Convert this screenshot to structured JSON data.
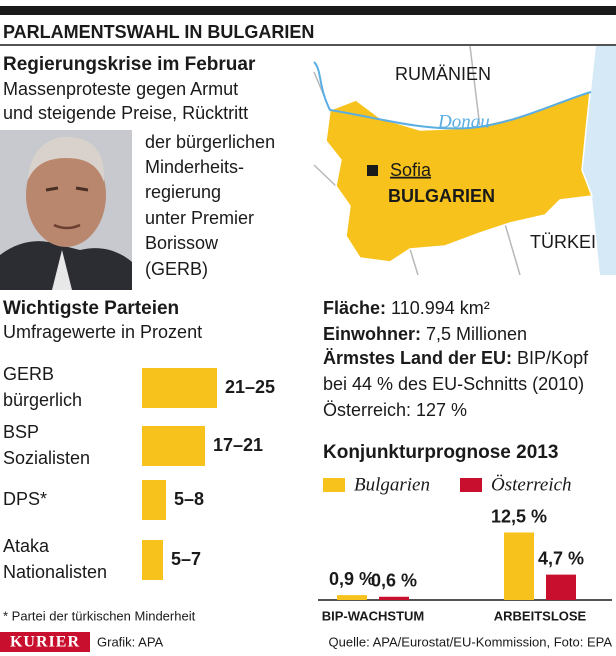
{
  "header": {
    "title": "PARLAMENTSWAHL IN BULGARIEN"
  },
  "intro": {
    "heading": "Regierungskrise im Februar",
    "lines": [
      "Massenproteste gegen Armut",
      "und steigende Preise, Rücktritt",
      "der bürgerlichen",
      "Minderheits-",
      "regierung",
      "unter Premier",
      "Borissow",
      "(GERB)"
    ]
  },
  "map": {
    "romania": "RUMÄNIEN",
    "river": "Donau",
    "capital": "Sofia",
    "country": "BULGARIEN",
    "turkey": "TÜRKEI"
  },
  "facts": {
    "rows": [
      {
        "label": "Fläche:",
        "text": "110.994 km²"
      },
      {
        "label": "Einwohner:",
        "text": "7,5 Millionen"
      },
      {
        "label": "Ärmstes Land der EU:",
        "text": "BIP/Kopf"
      }
    ],
    "lines": [
      "bei 44 % des EU-Schnitts (2010)",
      "Österreich: 127 %"
    ]
  },
  "chart_data": [
    {
      "type": "range_bar",
      "title": "Wichtigste Parteien",
      "subtitle": "Umfragewerte in Prozent",
      "categories": [
        "GERB",
        "BSP",
        "DPS*",
        "Ataka"
      ],
      "descriptions": [
        "bürgerlich",
        "Sozialisten",
        null,
        "Nationalisten"
      ],
      "values": [
        [
          21,
          25
        ],
        [
          17,
          21
        ],
        [
          5,
          8
        ],
        [
          5,
          7
        ]
      ],
      "value_labels": [
        "21–25",
        "17–21",
        "5–8",
        "5–7"
      ],
      "color": "#f7c21b",
      "footnote": "* Partei der türkischen Minderheit"
    },
    {
      "type": "bar",
      "title": "Konjunkturprognose 2013",
      "categories": [
        "BIP-WACHSTUM",
        "ARBEITSLOSE"
      ],
      "series": [
        {
          "name": "Bulgarien",
          "color": "#f7c21b",
          "values": [
            0.9,
            12.5
          ],
          "value_labels": [
            "0,9 %",
            "12,5 %"
          ]
        },
        {
          "name": "Österreich",
          "color": "#c8102e",
          "values": [
            0.6,
            4.7
          ],
          "value_labels": [
            "0,6 %",
            "4,7 %"
          ]
        }
      ]
    }
  ],
  "footer": {
    "brand": "KURIER",
    "credit": "Grafik: APA",
    "source": "Quelle: APA/Eurostat/EU-Kommission, Foto: EPA"
  }
}
